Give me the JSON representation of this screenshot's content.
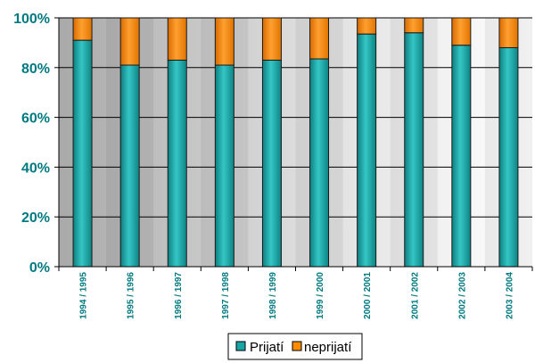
{
  "chart_data": {
    "type": "bar",
    "stacked": true,
    "percent": true,
    "categories": [
      "1994 / 1995",
      "1995 / 1996",
      "1996 / 1997",
      "1997 / 1998",
      "1998 / 1999",
      "1999 / 2000",
      "2000 / 2001",
      "2001 / 2002",
      "2002 / 2003",
      "2003 / 2004"
    ],
    "series": [
      {
        "name": "Prijatí",
        "color": "#1aa5a5",
        "values": [
          91,
          81,
          83,
          81,
          83,
          83.5,
          93.5,
          94,
          89,
          88
        ]
      },
      {
        "name": "neprijatí",
        "color": "#ff8c00",
        "values": [
          9,
          19,
          17,
          19,
          17,
          16.5,
          6.5,
          6,
          11,
          12
        ]
      }
    ],
    "ylim": [
      0,
      100
    ],
    "yticks": [
      "0%",
      "20%",
      "40%",
      "60%",
      "80%",
      "100%"
    ],
    "grid": true,
    "legend": "bottom",
    "title": "",
    "xlabel": "",
    "ylabel": ""
  }
}
